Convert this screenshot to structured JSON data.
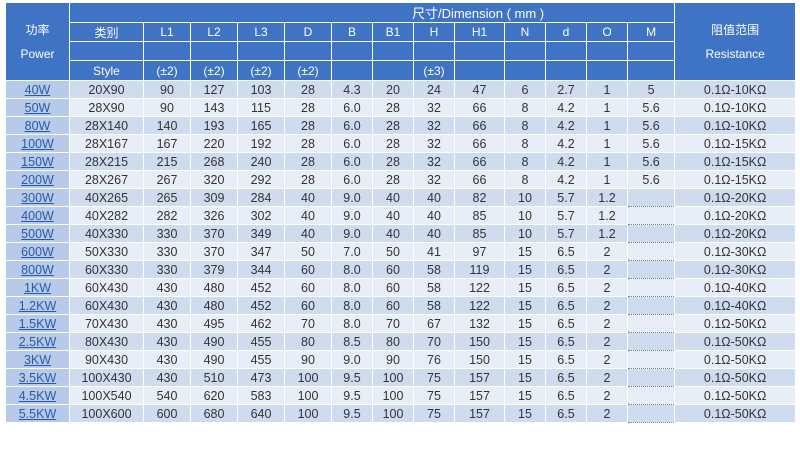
{
  "header": {
    "power_cn": "功率",
    "power_en": "Power",
    "style_cn": "类别",
    "style_en": "Style",
    "dimension_title": "尺寸/Dimension ( mm )",
    "resistance_cn": "阻值范围",
    "resistance_en": "Resistance",
    "columns": [
      {
        "label": "L1",
        "tol": "(±2)"
      },
      {
        "label": "L2",
        "tol": "(±2)"
      },
      {
        "label": "L3",
        "tol": "(±2)"
      },
      {
        "label": "D",
        "tol": "(±2)"
      },
      {
        "label": "B",
        "tol": ""
      },
      {
        "label": "B1",
        "tol": ""
      },
      {
        "label": "H",
        "tol": "(±3)"
      },
      {
        "label": "H1",
        "tol": ""
      },
      {
        "label": "N",
        "tol": ""
      },
      {
        "label": "d",
        "tol": ""
      },
      {
        "label": "O",
        "tol": ""
      },
      {
        "label": "M",
        "tol": ""
      }
    ]
  },
  "rows": [
    [
      "40W",
      "20X90",
      "90",
      "127",
      "103",
      "28",
      "4.3",
      "20",
      "24",
      "47",
      "6",
      "2.7",
      "1",
      "5",
      "0.1Ω-10KΩ"
    ],
    [
      "50W",
      "28X90",
      "90",
      "143",
      "115",
      "28",
      "6.0",
      "28",
      "32",
      "66",
      "8",
      "4.2",
      "1",
      "5.6",
      "0.1Ω-10KΩ"
    ],
    [
      "80W",
      "28X140",
      "140",
      "193",
      "165",
      "28",
      "6.0",
      "28",
      "32",
      "66",
      "8",
      "4.2",
      "1",
      "5.6",
      "0.1Ω-10KΩ"
    ],
    [
      "100W",
      "28X167",
      "167",
      "220",
      "192",
      "28",
      "6.0",
      "28",
      "32",
      "66",
      "8",
      "4.2",
      "1",
      "5.6",
      "0.1Ω-15KΩ"
    ],
    [
      "150W",
      "28X215",
      "215",
      "268",
      "240",
      "28",
      "6.0",
      "28",
      "32",
      "66",
      "8",
      "4.2",
      "1",
      "5.6",
      "0.1Ω-15KΩ"
    ],
    [
      "200W",
      "28X267",
      "267",
      "320",
      "292",
      "28",
      "6.0",
      "28",
      "32",
      "66",
      "8",
      "4.2",
      "1",
      "5.6",
      "0.1Ω-15KΩ"
    ],
    [
      "300W",
      "40X265",
      "265",
      "309",
      "284",
      "40",
      "9.0",
      "40",
      "40",
      "82",
      "10",
      "5.7",
      "1.2",
      "",
      "0.1Ω-20KΩ"
    ],
    [
      "400W",
      "40X282",
      "282",
      "326",
      "302",
      "40",
      "9.0",
      "40",
      "40",
      "85",
      "10",
      "5.7",
      "1.2",
      "",
      "0.1Ω-20KΩ"
    ],
    [
      "500W",
      "40X330",
      "330",
      "370",
      "349",
      "40",
      "9.0",
      "40",
      "40",
      "85",
      "10",
      "5.7",
      "1.2",
      "",
      "0.1Ω-20KΩ"
    ],
    [
      "600W",
      "50X330",
      "330",
      "370",
      "347",
      "50",
      "7.0",
      "50",
      "41",
      "97",
      "15",
      "6.5",
      "2",
      "",
      "0.1Ω-30KΩ"
    ],
    [
      "800W",
      "60X330",
      "330",
      "379",
      "344",
      "60",
      "8.0",
      "60",
      "58",
      "119",
      "15",
      "6.5",
      "2",
      "",
      "0.1Ω-30KΩ"
    ],
    [
      "1KW",
      "60X430",
      "430",
      "480",
      "452",
      "60",
      "8.0",
      "60",
      "58",
      "122",
      "15",
      "6.5",
      "2",
      "",
      "0.1Ω-40KΩ"
    ],
    [
      "1.2KW",
      "60X430",
      "430",
      "480",
      "452",
      "60",
      "8.0",
      "60",
      "58",
      "122",
      "15",
      "6.5",
      "2",
      "",
      "0.1Ω-40KΩ"
    ],
    [
      "1.5KW",
      "70X430",
      "430",
      "495",
      "462",
      "70",
      "8.0",
      "70",
      "67",
      "132",
      "15",
      "6.5",
      "2",
      "",
      "0.1Ω-50KΩ"
    ],
    [
      "2.5KW",
      "80X430",
      "430",
      "490",
      "455",
      "80",
      "8.5",
      "80",
      "70",
      "150",
      "15",
      "6.5",
      "2",
      "",
      "0.1Ω-50KΩ"
    ],
    [
      "3KW",
      "90X430",
      "430",
      "490",
      "455",
      "90",
      "9.0",
      "90",
      "76",
      "150",
      "15",
      "6.5",
      "2",
      "",
      "0.1Ω-50KΩ"
    ],
    [
      "3.5KW",
      "100X430",
      "430",
      "510",
      "473",
      "100",
      "9.5",
      "100",
      "75",
      "157",
      "15",
      "6.5",
      "2",
      "",
      "0.1Ω-50KΩ"
    ],
    [
      "4.5KW",
      "100X540",
      "540",
      "620",
      "583",
      "100",
      "9.5",
      "100",
      "75",
      "157",
      "15",
      "6.5",
      "2",
      "",
      "0.1Ω-50KΩ"
    ],
    [
      "5.5KW",
      "100X600",
      "600",
      "680",
      "640",
      "100",
      "9.5",
      "100",
      "75",
      "157",
      "15",
      "6.5",
      "2",
      "",
      "0.1Ω-50KΩ"
    ]
  ]
}
